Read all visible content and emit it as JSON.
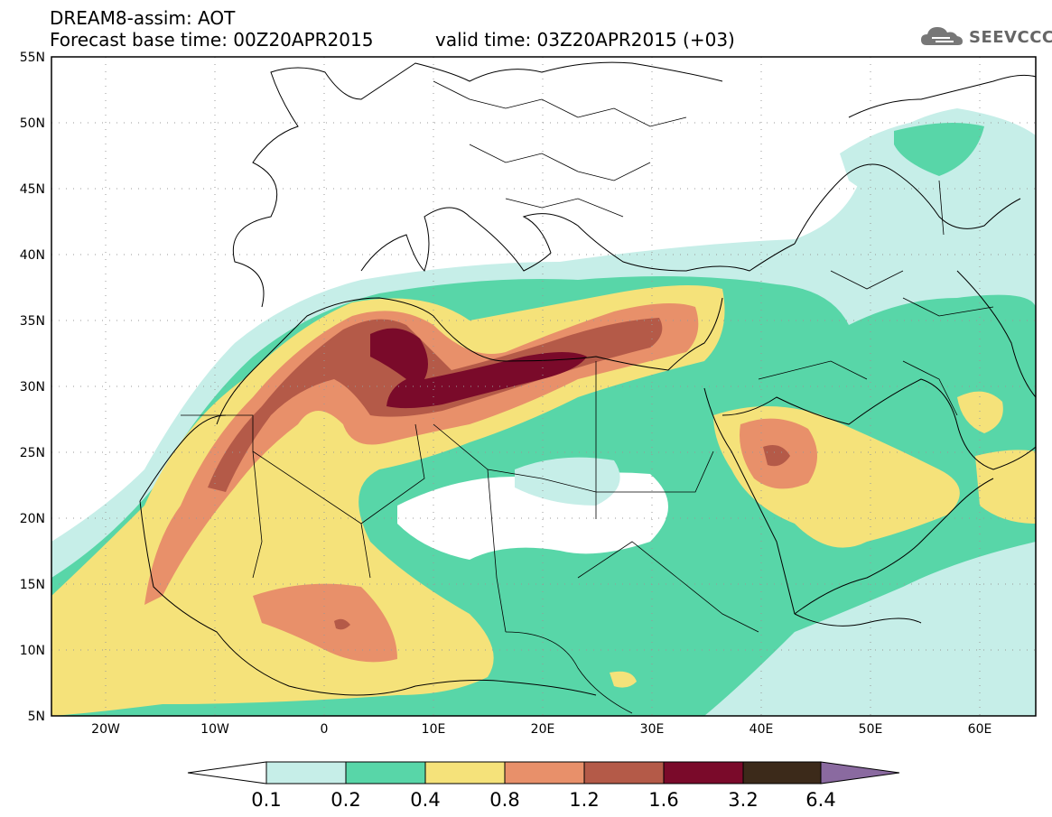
{
  "header": {
    "line1": "DREAM8-assim: AOT",
    "line2": "Forecast base time: 00Z20APR2015",
    "valid": "valid time: 03Z20APR2015 (+03)"
  },
  "logo": {
    "text": "SEEVCCC",
    "icon": "cloud-icon"
  },
  "map": {
    "lat_labels": [
      "55N",
      "50N",
      "45N",
      "40N",
      "35N",
      "30N",
      "25N",
      "20N",
      "15N",
      "10N",
      "5N"
    ],
    "lon_labels": [
      "20W",
      "10W",
      "0",
      "10E",
      "20E",
      "30E",
      "40E",
      "50E",
      "60E"
    ],
    "lat_range": [
      5,
      55
    ],
    "lon_range": [
      -25,
      65
    ],
    "grid": "dotted"
  },
  "colorbar": {
    "labels": [
      "0.1",
      "0.2",
      "0.4",
      "0.8",
      "1.2",
      "1.6",
      "3.2",
      "6.4"
    ],
    "colors": [
      "#ffffff",
      "#c6eee8",
      "#58d6a8",
      "#f5e27a",
      "#e8906a",
      "#b45a48",
      "#7a0a2a",
      "#3c2a1a",
      "#8a6aa0"
    ]
  }
}
